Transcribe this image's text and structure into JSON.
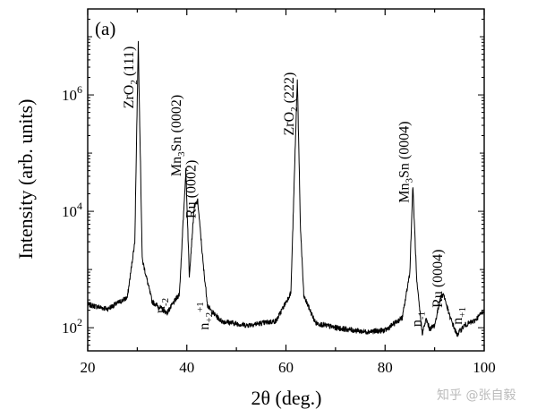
{
  "chart_data": {
    "type": "line",
    "panel_label": "(a)",
    "xlabel": "2θ (deg.)",
    "ylabel": "Intensity (arb. units)",
    "xlim": [
      20,
      100
    ],
    "ylim": [
      40,
      30000000
    ],
    "y_scale": "log",
    "x_ticks": [
      20,
      40,
      60,
      80,
      100
    ],
    "y_ticks": [
      {
        "base": "10",
        "exp": "2"
      },
      {
        "base": "10",
        "exp": "4"
      },
      {
        "base": "10",
        "exp": "6"
      }
    ],
    "grid": false,
    "line_color": "#000000",
    "series": [
      {
        "x": [
          20,
          24,
          28,
          29.5,
          30.2,
          31,
          33,
          36,
          38.5,
          39.8,
          40.5,
          41.5,
          42.2,
          43.4,
          44.2,
          45,
          47,
          52,
          58,
          61,
          62.3,
          62.9,
          63.6,
          66,
          70,
          76,
          80,
          83.5,
          85,
          85.6,
          86.4,
          87.5,
          88.3,
          89,
          90,
          91.2,
          91.8,
          93,
          94.5,
          96,
          98,
          100
        ],
        "y": [
          250,
          210,
          330,
          3000,
          8000000,
          1500,
          280,
          180,
          380,
          50000,
          800,
          12000,
          15000,
          1000,
          240,
          190,
          130,
          110,
          130,
          400,
          2000000,
          6000,
          350,
          120,
          100,
          85,
          90,
          150,
          900,
          28000,
          600,
          80,
          140,
          95,
          110,
          330,
          380,
          160,
          75,
          110,
          130,
          200
        ]
      }
    ],
    "annotations": [
      {
        "id": "zro2-111",
        "x": 29.2,
        "y": 2000000,
        "parts": [
          [
            "ZrO"
          ],
          [
            "2",
            "sub"
          ],
          [
            " (111)"
          ]
        ]
      },
      {
        "id": "mn3sn-0002",
        "x": 38.8,
        "y": 200000,
        "parts": [
          [
            "Mn"
          ],
          [
            "3",
            "sub"
          ],
          [
            "Sn (0002)"
          ]
        ]
      },
      {
        "id": "ru-0002",
        "x": 41.8,
        "y": 24000,
        "parts": [
          [
            "Ru (0002)"
          ]
        ]
      },
      {
        "id": "zro2-222",
        "x": 61.5,
        "y": 700000,
        "parts": [
          [
            "ZrO"
          ],
          [
            "2",
            "sub"
          ],
          [
            " (222)"
          ]
        ]
      },
      {
        "id": "mn3sn-0004",
        "x": 84.7,
        "y": 70000,
        "parts": [
          [
            "Mn"
          ],
          [
            "3",
            "sub"
          ],
          [
            "Sn (0004)"
          ]
        ]
      },
      {
        "id": "ru-0004",
        "x": 91.5,
        "y": 700,
        "parts": [
          [
            "Ru (0004)"
          ]
        ]
      },
      {
        "id": "n-minus-2",
        "x": 35.5,
        "y": 240,
        "parts": [
          [
            "n"
          ],
          [
            "-2",
            "sub"
          ]
        ]
      },
      {
        "id": "n-plus-2-plus-1",
        "x": 44.4,
        "y": 160,
        "parts": [
          [
            "n"
          ],
          [
            "+2",
            "sub"
          ],
          [
            "+1",
            "sup"
          ]
        ]
      },
      {
        "id": "n-minus-1",
        "x": 87.3,
        "y": 140,
        "parts": [
          [
            "n"
          ],
          [
            "-1",
            "sub"
          ]
        ]
      },
      {
        "id": "n-plus-1",
        "x": 95.5,
        "y": 160,
        "parts": [
          [
            "n"
          ],
          [
            "+1",
            "sub"
          ]
        ]
      }
    ]
  },
  "watermark": "知乎 @张自毅"
}
